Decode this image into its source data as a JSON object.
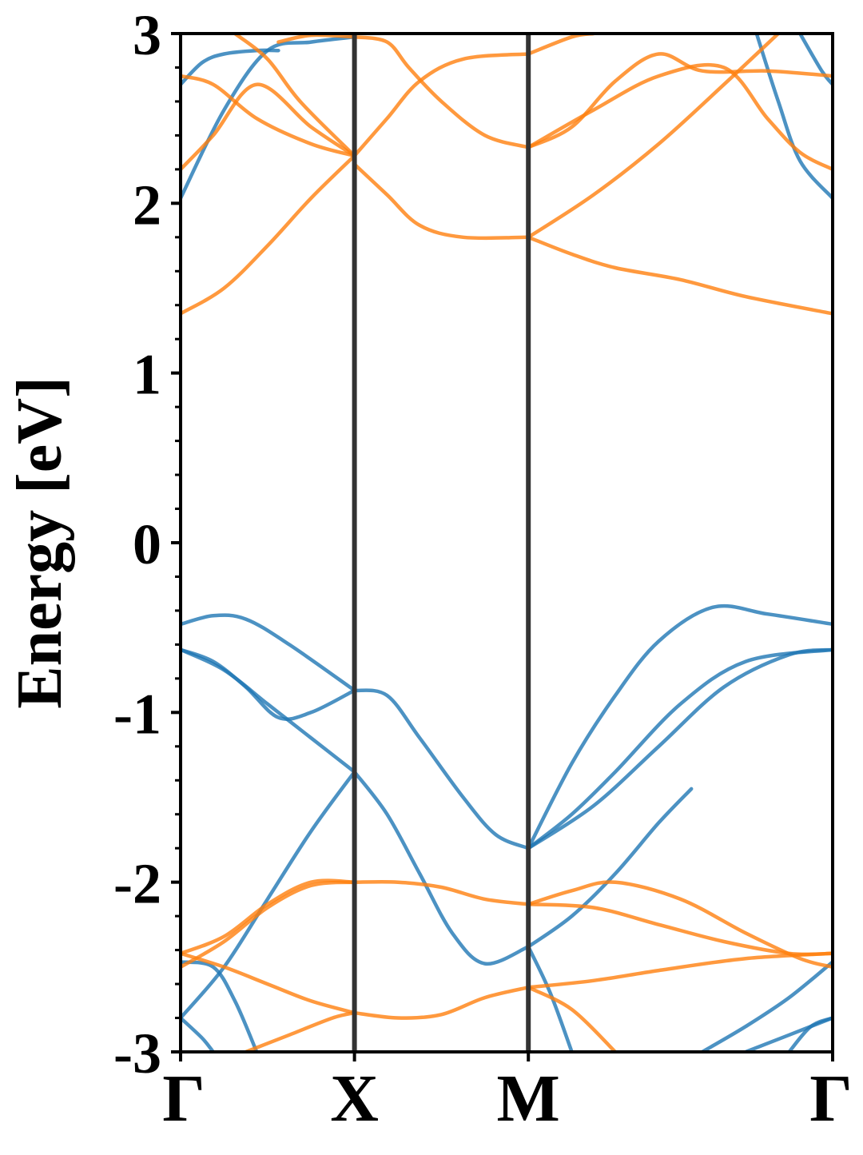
{
  "chart_data": {
    "type": "line",
    "title": "",
    "xlabel": "",
    "ylabel": "Energy [eV]",
    "ylim": [
      -3,
      3
    ],
    "xlim": [
      0,
      3
    ],
    "x_ticks": [
      {
        "label": "Γ",
        "x": 0
      },
      {
        "label": "X",
        "x": 0.8
      },
      {
        "label": "M",
        "x": 1.6
      },
      {
        "label": "Γ",
        "x": 3
      }
    ],
    "y_ticks": [
      {
        "label": "3",
        "value": 3
      },
      {
        "label": "2",
        "value": 2
      },
      {
        "label": "1",
        "value": 1
      },
      {
        "label": "0",
        "value": 0
      },
      {
        "label": "-1",
        "value": -1
      },
      {
        "label": "-2",
        "value": -2
      },
      {
        "label": "-3",
        "value": -3
      }
    ],
    "minor_tick_step": 0.2,
    "kpath_lines": [
      0.8,
      1.6
    ],
    "grid": false,
    "legend": "none",
    "series_colors": {
      "blue": "#1f77b4",
      "orange": "#ff7f0e"
    },
    "series": [
      {
        "color": "blue",
        "points": [
          [
            0,
            2.03
          ],
          [
            0.2,
            2.55
          ],
          [
            0.4,
            2.9
          ],
          [
            0.6,
            2.95
          ],
          [
            0.8,
            2.98
          ]
        ]
      },
      {
        "color": "blue",
        "points": [
          [
            0,
            2.7
          ],
          [
            0.1,
            2.83
          ],
          [
            0.2,
            2.88
          ],
          [
            0.35,
            2.9
          ],
          [
            0.45,
            2.9
          ]
        ]
      },
      {
        "color": "blue",
        "points": [
          [
            2.65,
            3.0
          ],
          [
            2.75,
            2.6
          ],
          [
            2.85,
            2.25
          ],
          [
            3,
            2.03
          ]
        ]
      },
      {
        "color": "blue",
        "points": [
          [
            2.85,
            3.0
          ],
          [
            2.95,
            2.78
          ],
          [
            3,
            2.7
          ]
        ]
      },
      {
        "color": "orange",
        "points": [
          [
            0,
            1.35
          ],
          [
            0.2,
            1.5
          ],
          [
            0.4,
            1.75
          ],
          [
            0.6,
            2.03
          ],
          [
            0.8,
            2.28
          ]
        ]
      },
      {
        "color": "orange",
        "points": [
          [
            0,
            2.2
          ],
          [
            0.15,
            2.4
          ],
          [
            0.35,
            2.7
          ],
          [
            0.6,
            2.45
          ],
          [
            0.8,
            2.28
          ]
        ]
      },
      {
        "color": "orange",
        "points": [
          [
            0,
            2.75
          ],
          [
            0.15,
            2.7
          ],
          [
            0.35,
            2.5
          ],
          [
            0.6,
            2.35
          ],
          [
            0.8,
            2.28
          ]
        ]
      },
      {
        "color": "orange",
        "points": [
          [
            0.25,
            3.0
          ],
          [
            0.4,
            2.85
          ],
          [
            0.55,
            2.6
          ],
          [
            0.8,
            2.28
          ]
        ]
      },
      {
        "color": "orange",
        "points": [
          [
            0.45,
            2.95
          ],
          [
            0.6,
            2.99
          ],
          [
            0.8,
            2.98
          ]
        ]
      },
      {
        "color": "orange",
        "points": [
          [
            0.8,
            2.98
          ],
          [
            0.95,
            2.95
          ],
          [
            1.05,
            2.8
          ],
          [
            1.2,
            2.6
          ],
          [
            1.4,
            2.4
          ],
          [
            1.6,
            2.33
          ]
        ]
      },
      {
        "color": "orange",
        "points": [
          [
            0.8,
            2.28
          ],
          [
            0.95,
            2.5
          ],
          [
            1.1,
            2.72
          ],
          [
            1.3,
            2.85
          ],
          [
            1.6,
            2.88
          ]
        ]
      },
      {
        "color": "orange",
        "points": [
          [
            0.8,
            2.23
          ],
          [
            0.95,
            2.05
          ],
          [
            1.1,
            1.87
          ],
          [
            1.3,
            1.8
          ],
          [
            1.6,
            1.8
          ]
        ]
      },
      {
        "color": "orange",
        "points": [
          [
            1.6,
            2.88
          ],
          [
            1.8,
            2.98
          ],
          [
            1.9,
            3.0
          ]
        ]
      },
      {
        "color": "orange",
        "points": [
          [
            1.6,
            2.33
          ],
          [
            1.8,
            2.45
          ],
          [
            2.0,
            2.72
          ],
          [
            2.2,
            2.88
          ],
          [
            2.4,
            2.78
          ],
          [
            2.7,
            2.78
          ],
          [
            3,
            2.75
          ]
        ]
      },
      {
        "color": "orange",
        "points": [
          [
            1.6,
            2.33
          ],
          [
            1.9,
            2.55
          ],
          [
            2.2,
            2.75
          ],
          [
            2.5,
            2.8
          ],
          [
            2.7,
            2.5
          ],
          [
            2.85,
            2.3
          ],
          [
            3,
            2.2
          ]
        ]
      },
      {
        "color": "orange",
        "points": [
          [
            1.6,
            1.8
          ],
          [
            1.9,
            2.05
          ],
          [
            2.2,
            2.35
          ],
          [
            2.5,
            2.7
          ],
          [
            2.75,
            3.0
          ]
        ]
      },
      {
        "color": "orange",
        "points": [
          [
            1.6,
            1.8
          ],
          [
            1.8,
            1.7
          ],
          [
            2.0,
            1.62
          ],
          [
            2.3,
            1.55
          ],
          [
            2.6,
            1.45
          ],
          [
            3,
            1.35
          ]
        ]
      },
      {
        "color": "blue",
        "points": [
          [
            0,
            -0.48
          ],
          [
            0.15,
            -0.43
          ],
          [
            0.3,
            -0.45
          ],
          [
            0.5,
            -0.6
          ],
          [
            0.8,
            -0.87
          ]
        ]
      },
      {
        "color": "blue",
        "points": [
          [
            0,
            -0.63
          ],
          [
            0.15,
            -0.7
          ],
          [
            0.3,
            -0.85
          ],
          [
            0.45,
            -1.03
          ],
          [
            0.6,
            -1.0
          ],
          [
            0.8,
            -0.87
          ]
        ]
      },
      {
        "color": "blue",
        "points": [
          [
            0,
            -0.63
          ],
          [
            0.2,
            -0.75
          ],
          [
            0.4,
            -0.95
          ],
          [
            0.6,
            -1.15
          ],
          [
            0.8,
            -1.35
          ]
        ]
      },
      {
        "color": "blue",
        "points": [
          [
            0.8,
            -0.87
          ],
          [
            0.95,
            -0.9
          ],
          [
            1.1,
            -1.15
          ],
          [
            1.3,
            -1.5
          ],
          [
            1.45,
            -1.72
          ],
          [
            1.6,
            -1.8
          ]
        ]
      },
      {
        "color": "blue",
        "points": [
          [
            0.8,
            -1.35
          ],
          [
            0.95,
            -1.6
          ],
          [
            1.1,
            -1.95
          ],
          [
            1.25,
            -2.3
          ],
          [
            1.4,
            -2.48
          ],
          [
            1.6,
            -2.38
          ]
        ]
      },
      {
        "color": "blue",
        "points": [
          [
            1.6,
            -1.8
          ],
          [
            1.8,
            -1.3
          ],
          [
            2.0,
            -0.9
          ],
          [
            2.2,
            -0.58
          ],
          [
            2.45,
            -0.38
          ],
          [
            2.7,
            -0.42
          ],
          [
            3,
            -0.48
          ]
        ]
      },
      {
        "color": "blue",
        "points": [
          [
            1.6,
            -1.8
          ],
          [
            1.8,
            -1.6
          ],
          [
            2.0,
            -1.35
          ],
          [
            2.3,
            -0.95
          ],
          [
            2.6,
            -0.7
          ],
          [
            3,
            -0.63
          ]
        ]
      },
      {
        "color": "blue",
        "points": [
          [
            1.6,
            -1.8
          ],
          [
            1.9,
            -1.55
          ],
          [
            2.2,
            -1.2
          ],
          [
            2.5,
            -0.85
          ],
          [
            2.8,
            -0.66
          ],
          [
            3,
            -0.63
          ]
        ]
      },
      {
        "color": "blue",
        "points": [
          [
            0,
            -2.47
          ],
          [
            0.15,
            -2.5
          ],
          [
            0.25,
            -2.7
          ],
          [
            0.35,
            -3.0
          ]
        ]
      },
      {
        "color": "blue",
        "points": [
          [
            0,
            -2.8
          ],
          [
            0.2,
            -2.5
          ],
          [
            0.4,
            -2.1
          ],
          [
            0.6,
            -1.7
          ],
          [
            0.8,
            -1.35
          ]
        ]
      },
      {
        "color": "blue",
        "points": [
          [
            0,
            -2.8
          ],
          [
            0.1,
            -2.92
          ],
          [
            0.15,
            -3.0
          ]
        ]
      },
      {
        "color": "blue",
        "points": [
          [
            1.6,
            -2.38
          ],
          [
            1.8,
            -2.2
          ],
          [
            2.0,
            -1.95
          ],
          [
            2.2,
            -1.65
          ],
          [
            2.35,
            -1.45
          ]
        ]
      },
      {
        "color": "blue",
        "points": [
          [
            1.6,
            -2.38
          ],
          [
            1.7,
            -2.65
          ],
          [
            1.8,
            -3.0
          ]
        ]
      },
      {
        "color": "blue",
        "points": [
          [
            2.4,
            -3.0
          ],
          [
            2.6,
            -2.85
          ],
          [
            2.8,
            -2.68
          ],
          [
            3,
            -2.47
          ]
        ]
      },
      {
        "color": "blue",
        "points": [
          [
            2.8,
            -3.0
          ],
          [
            2.9,
            -2.85
          ],
          [
            3,
            -2.8
          ]
        ]
      },
      {
        "color": "blue",
        "points": [
          [
            2.6,
            -3.0
          ],
          [
            2.8,
            -2.9
          ],
          [
            3,
            -2.8
          ]
        ]
      },
      {
        "color": "orange",
        "points": [
          [
            0,
            -2.42
          ],
          [
            0.2,
            -2.32
          ],
          [
            0.4,
            -2.13
          ],
          [
            0.6,
            -2.0
          ],
          [
            0.8,
            -2.0
          ]
        ]
      },
      {
        "color": "orange",
        "points": [
          [
            0,
            -2.5
          ],
          [
            0.2,
            -2.35
          ],
          [
            0.4,
            -2.15
          ],
          [
            0.6,
            -2.02
          ],
          [
            0.8,
            -2.0
          ]
        ]
      },
      {
        "color": "orange",
        "points": [
          [
            0,
            -2.42
          ],
          [
            0.2,
            -2.5
          ],
          [
            0.4,
            -2.6
          ],
          [
            0.6,
            -2.7
          ],
          [
            0.8,
            -2.77
          ]
        ]
      },
      {
        "color": "orange",
        "points": [
          [
            0.8,
            -2.0
          ],
          [
            1.0,
            -2.0
          ],
          [
            1.2,
            -2.03
          ],
          [
            1.4,
            -2.1
          ],
          [
            1.6,
            -2.13
          ]
        ]
      },
      {
        "color": "orange",
        "points": [
          [
            0.8,
            -2.77
          ],
          [
            1.0,
            -2.8
          ],
          [
            1.2,
            -2.78
          ],
          [
            1.4,
            -2.68
          ],
          [
            1.6,
            -2.62
          ]
        ]
      },
      {
        "color": "orange",
        "points": [
          [
            0.3,
            -3.0
          ],
          [
            0.5,
            -2.9
          ],
          [
            0.7,
            -2.8
          ],
          [
            0.8,
            -2.77
          ]
        ]
      },
      {
        "color": "orange",
        "points": [
          [
            1.6,
            -2.13
          ],
          [
            1.8,
            -2.05
          ],
          [
            2.0,
            -2.0
          ],
          [
            2.3,
            -2.1
          ],
          [
            2.6,
            -2.3
          ],
          [
            2.85,
            -2.45
          ],
          [
            3,
            -2.5
          ]
        ]
      },
      {
        "color": "orange",
        "points": [
          [
            1.6,
            -2.13
          ],
          [
            1.9,
            -2.15
          ],
          [
            2.2,
            -2.25
          ],
          [
            2.5,
            -2.35
          ],
          [
            2.8,
            -2.42
          ],
          [
            3,
            -2.42
          ]
        ]
      },
      {
        "color": "orange",
        "points": [
          [
            1.6,
            -2.62
          ],
          [
            1.9,
            -2.58
          ],
          [
            2.2,
            -2.52
          ],
          [
            2.6,
            -2.45
          ],
          [
            3,
            -2.42
          ]
        ]
      },
      {
        "color": "orange",
        "points": [
          [
            1.6,
            -2.62
          ],
          [
            1.8,
            -2.75
          ],
          [
            2.0,
            -3.0
          ]
        ]
      }
    ]
  }
}
